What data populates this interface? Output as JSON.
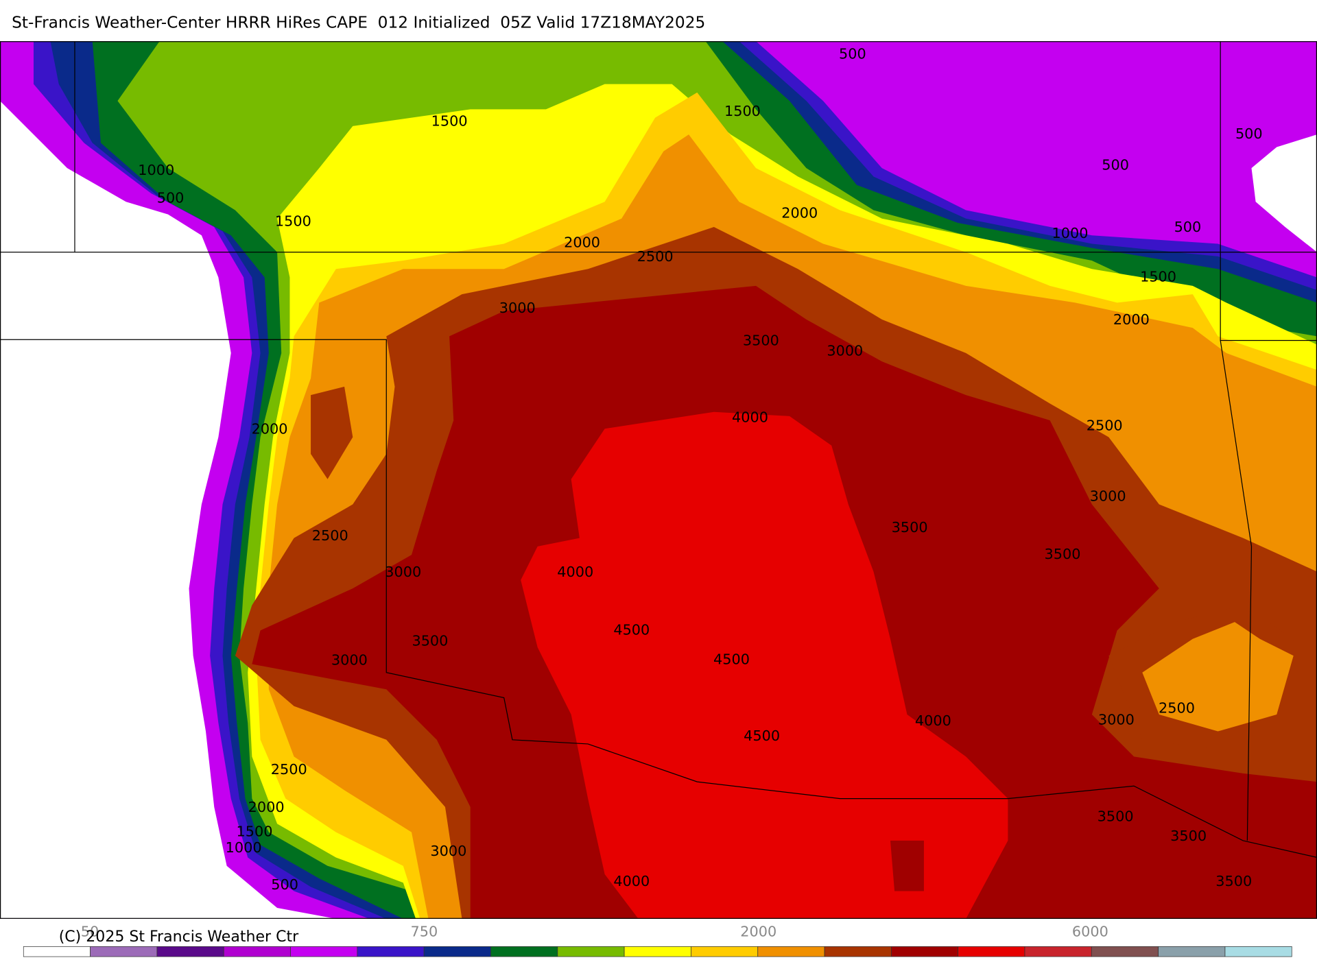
{
  "header": {
    "title": "St-Francis Weather-Center HRRR HiRes CAPE  012 Initialized  05Z Valid 17Z18MAY2025"
  },
  "footer": {
    "copyright": "(C) 2025 St Francis Weather Ctr"
  },
  "contour_labels": [
    "500",
    "1500",
    "1500",
    "500",
    "1000",
    "500",
    "500",
    "1500",
    "2000",
    "1000",
    "500",
    "2000",
    "2500",
    "1500",
    "3000",
    "2000",
    "3500",
    "3000",
    "4000",
    "2000",
    "2500",
    "3000",
    "2500",
    "3500",
    "3500",
    "3000",
    "4000",
    "4500",
    "3500",
    "4500",
    "3000",
    "2500",
    "4000",
    "3000",
    "4500",
    "2500",
    "2000",
    "3500",
    "1500",
    "3500",
    "1000",
    "3000",
    "4000",
    "3500",
    "500"
  ],
  "colorbar": {
    "colors": [
      "#ffffff",
      "#9c6bb8",
      "#5a0a8a",
      "#b000d0",
      "#c400f0",
      "#3a14c8",
      "#0a2a8a",
      "#007020",
      "#77bb00",
      "#ffff00",
      "#ffcc00",
      "#f09000",
      "#a83400",
      "#a00000",
      "#e60000",
      "#c8242c",
      "#805050",
      "#8aa0aa",
      "#a8dce4"
    ],
    "labels": [
      "50",
      "750",
      "2000",
      "6000"
    ]
  }
}
